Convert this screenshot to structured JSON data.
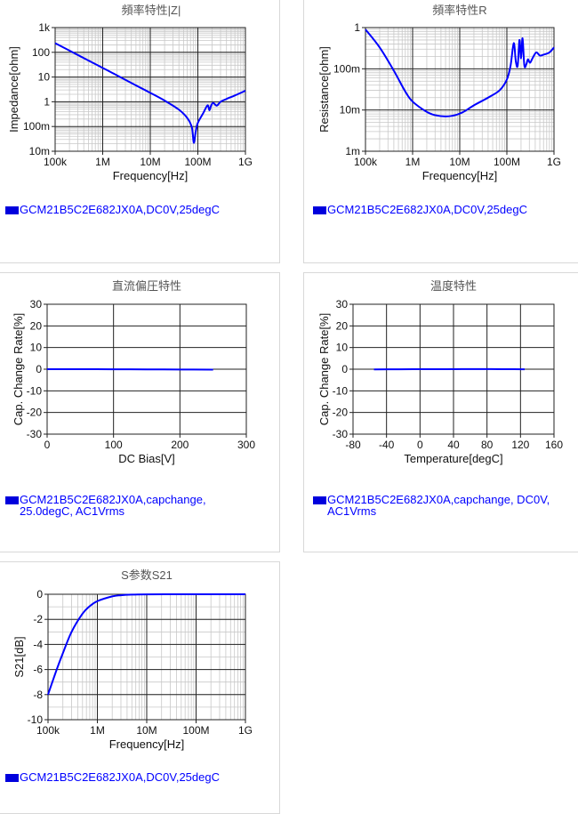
{
  "chart_data": [
    {
      "id": "z",
      "type": "line",
      "title": "頻率特性|Z|",
      "xlabel": "Frequency[Hz]",
      "ylabel": "Impedance[ohm]",
      "xscale": "log",
      "yscale": "log",
      "xlim": [
        100000,
        1000000000
      ],
      "ylim": [
        0.01,
        1000
      ],
      "xticks": [
        {
          "v": 100000,
          "label": "100k"
        },
        {
          "v": 1000000,
          "label": "1M"
        },
        {
          "v": 10000000,
          "label": "10M"
        },
        {
          "v": 100000000,
          "label": "100M"
        },
        {
          "v": 1000000000,
          "label": "1G"
        }
      ],
      "yticks": [
        {
          "v": 0.01,
          "label": "10m"
        },
        {
          "v": 0.1,
          "label": "100m"
        },
        {
          "v": 1,
          "label": "1"
        },
        {
          "v": 10,
          "label": "10"
        },
        {
          "v": 100,
          "label": "100"
        },
        {
          "v": 1000,
          "label": "1k"
        }
      ],
      "grid": true,
      "series": [
        {
          "color": "#0000ff",
          "x": [
            100000,
            200000,
            500000,
            1000000,
            2000000,
            5000000,
            10000000,
            20000000,
            40000000,
            60000000,
            75000000,
            82000000,
            90000000,
            100000000,
            130000000,
            160000000,
            175000000,
            190000000,
            210000000,
            250000000,
            300000000,
            400000000,
            600000000,
            1000000000
          ],
          "y": [
            234,
            117,
            46.8,
            23.4,
            11.7,
            4.6,
            2.3,
            1.12,
            0.48,
            0.22,
            0.09,
            0.022,
            0.06,
            0.14,
            0.35,
            0.72,
            0.45,
            0.7,
            0.9,
            0.7,
            1.0,
            1.3,
            1.8,
            2.8
          ]
        }
      ],
      "legend": "GCM21B5C2E682JX0A,DC0V,25degC"
    },
    {
      "id": "r",
      "type": "line",
      "title": "頻率特性R",
      "xlabel": "Frequency[Hz]",
      "ylabel": "Resistance[ohm]",
      "xscale": "log",
      "yscale": "log",
      "xlim": [
        100000,
        1000000000
      ],
      "ylim": [
        0.001,
        1
      ],
      "xticks": [
        {
          "v": 100000,
          "label": "100k"
        },
        {
          "v": 1000000,
          "label": "1M"
        },
        {
          "v": 10000000,
          "label": "10M"
        },
        {
          "v": 100000000,
          "label": "100M"
        },
        {
          "v": 1000000000,
          "label": "1G"
        }
      ],
      "yticks": [
        {
          "v": 0.001,
          "label": "1m"
        },
        {
          "v": 0.01,
          "label": "10m"
        },
        {
          "v": 0.1,
          "label": "100m"
        },
        {
          "v": 1,
          "label": "1"
        }
      ],
      "grid": true,
      "series": [
        {
          "color": "#0000ff",
          "x": [
            100000,
            200000,
            400000,
            700000,
            1000000,
            2000000,
            3000000,
            5000000,
            8000000,
            12000000,
            20000000,
            40000000,
            70000000,
            100000000,
            120000000,
            140000000,
            155000000,
            170000000,
            185000000,
            200000000,
            215000000,
            235000000,
            260000000,
            280000000,
            310000000,
            350000000,
            420000000,
            500000000,
            600000000,
            800000000,
            1000000000
          ],
          "y": [
            0.9,
            0.33,
            0.09,
            0.028,
            0.016,
            0.009,
            0.0075,
            0.007,
            0.0075,
            0.009,
            0.013,
            0.02,
            0.03,
            0.055,
            0.12,
            0.42,
            0.15,
            0.12,
            0.5,
            0.18,
            0.55,
            0.12,
            0.13,
            0.17,
            0.14,
            0.18,
            0.25,
            0.21,
            0.22,
            0.25,
            0.33
          ]
        }
      ],
      "legend": "GCM21B5C2E682JX0A,DC0V,25degC"
    },
    {
      "id": "dc",
      "type": "line",
      "title": "直流偏圧特性",
      "xlabel": "DC Bias[V]",
      "ylabel": "Cap. Change Rate[%]",
      "xscale": "linear",
      "yscale": "linear",
      "xlim": [
        0,
        300
      ],
      "ylim": [
        -30,
        30
      ],
      "xticks": [
        {
          "v": 0,
          "label": "0"
        },
        {
          "v": 100,
          "label": "100"
        },
        {
          "v": 200,
          "label": "200"
        },
        {
          "v": 300,
          "label": "300"
        }
      ],
      "yticks": [
        {
          "v": -30,
          "label": "-30"
        },
        {
          "v": -20,
          "label": "-20"
        },
        {
          "v": -10,
          "label": "-10"
        },
        {
          "v": 0,
          "label": "0"
        },
        {
          "v": 10,
          "label": "10"
        },
        {
          "v": 20,
          "label": "20"
        },
        {
          "v": 30,
          "label": "30"
        }
      ],
      "grid": true,
      "series": [
        {
          "color": "#0000ff",
          "x": [
            0,
            50,
            100,
            150,
            200,
            250
          ],
          "y": [
            0,
            0,
            -0.05,
            -0.1,
            -0.15,
            -0.2
          ]
        }
      ],
      "legend": "GCM21B5C2E682JX0A,capchange,\n25.0degC, AC1Vrms"
    },
    {
      "id": "temp",
      "type": "line",
      "title": "温度特性",
      "xlabel": "Temperature[degC]",
      "ylabel": "Cap. Change Rate[%]",
      "xscale": "linear",
      "yscale": "linear",
      "xlim": [
        -80,
        160
      ],
      "ylim": [
        -30,
        30
      ],
      "xticks": [
        {
          "v": -80,
          "label": "-80"
        },
        {
          "v": -40,
          "label": "-40"
        },
        {
          "v": 0,
          "label": "0"
        },
        {
          "v": 40,
          "label": "40"
        },
        {
          "v": 80,
          "label": "80"
        },
        {
          "v": 120,
          "label": "120"
        },
        {
          "v": 160,
          "label": "160"
        }
      ],
      "yticks": [
        {
          "v": -30,
          "label": "-30"
        },
        {
          "v": -20,
          "label": "-20"
        },
        {
          "v": -10,
          "label": "-10"
        },
        {
          "v": 0,
          "label": "0"
        },
        {
          "v": 10,
          "label": "10"
        },
        {
          "v": 20,
          "label": "20"
        },
        {
          "v": 30,
          "label": "30"
        }
      ],
      "grid": true,
      "series": [
        {
          "color": "#0000ff",
          "x": [
            -55,
            -25,
            0,
            25,
            50,
            85,
            105,
            125
          ],
          "y": [
            -0.1,
            -0.05,
            0,
            0,
            0.05,
            0.05,
            0,
            -0.05
          ]
        }
      ],
      "legend": "GCM21B5C2E682JX0A,capchange, DC0V,\nAC1Vrms"
    },
    {
      "id": "s21",
      "type": "line",
      "title": "S参数S21",
      "xlabel": "Frequency[Hz]",
      "ylabel": "S21[dB]",
      "xscale": "log",
      "yscale": "linear",
      "xlim": [
        100000,
        1000000000
      ],
      "ylim": [
        -10,
        0
      ],
      "xticks": [
        {
          "v": 100000,
          "label": "100k"
        },
        {
          "v": 1000000,
          "label": "1M"
        },
        {
          "v": 10000000,
          "label": "10M"
        },
        {
          "v": 100000000,
          "label": "100M"
        },
        {
          "v": 1000000000,
          "label": "1G"
        }
      ],
      "yticks": [
        {
          "v": -10,
          "label": "-10"
        },
        {
          "v": -8,
          "label": "-8"
        },
        {
          "v": -6,
          "label": "-6"
        },
        {
          "v": -4,
          "label": "-4"
        },
        {
          "v": -2,
          "label": "-2"
        },
        {
          "v": 0,
          "label": "0"
        }
      ],
      "grid": true,
      "series": [
        {
          "color": "#0000ff",
          "x": [
            100000,
            150000,
            200000,
            300000,
            500000,
            700000,
            1000000,
            2000000,
            3000000,
            5000000,
            10000000,
            30000000,
            100000000,
            1000000000
          ],
          "y": [
            -8.0,
            -6.0,
            -4.7,
            -3.0,
            -1.55,
            -0.95,
            -0.55,
            -0.17,
            -0.08,
            -0.03,
            -0.01,
            0,
            0,
            0
          ]
        }
      ],
      "legend": "GCM21B5C2E682JX0A,DC0V,25degC"
    }
  ]
}
